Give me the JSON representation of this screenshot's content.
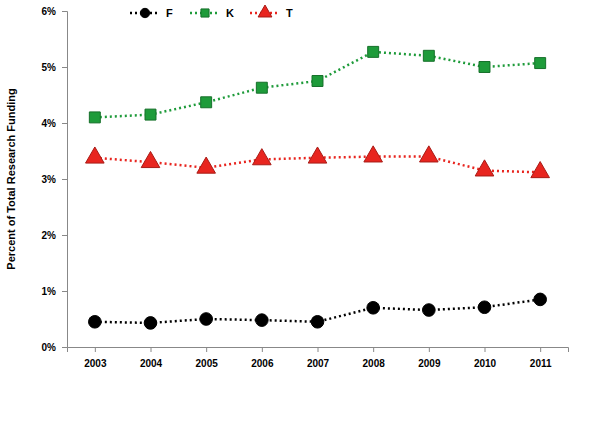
{
  "chart_data": {
    "type": "line",
    "y_label": "Percent of Total Research Funding",
    "categories": [
      "2003",
      "2004",
      "2005",
      "2006",
      "2007",
      "2008",
      "2009",
      "2010",
      "2011"
    ],
    "series": [
      {
        "name": "F",
        "color": "#000000",
        "marker": "circle",
        "line_style": "dotted",
        "values": [
          0.45,
          0.43,
          0.5,
          0.48,
          0.45,
          0.7,
          0.66,
          0.71,
          0.85
        ]
      },
      {
        "name": "K",
        "color": "#1e9b3a",
        "marker": "square",
        "line_style": "dotted",
        "values": [
          4.1,
          4.15,
          4.37,
          4.63,
          4.75,
          5.27,
          5.2,
          5.0,
          5.07
        ]
      },
      {
        "name": "T",
        "color": "#e8251f",
        "marker": "triangle",
        "line_style": "dotted",
        "values": [
          3.38,
          3.3,
          3.2,
          3.35,
          3.38,
          3.4,
          3.4,
          3.15,
          3.12
        ]
      }
    ],
    "ylim": [
      0,
      6
    ],
    "yticks": [
      {
        "value": 0,
        "label": "0%"
      },
      {
        "value": 1,
        "label": "1%"
      },
      {
        "value": 2,
        "label": "2%"
      },
      {
        "value": 3,
        "label": "3%"
      },
      {
        "value": 4,
        "label": "4%"
      },
      {
        "value": 5,
        "label": "5%"
      },
      {
        "value": 6,
        "label": "6%"
      }
    ],
    "grid": false,
    "legend": "upper left"
  }
}
